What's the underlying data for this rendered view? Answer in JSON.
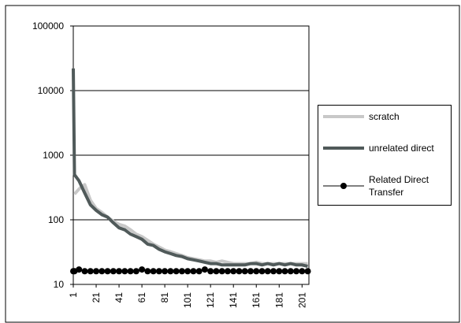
{
  "chart_data": {
    "type": "line",
    "x": [
      1,
      2,
      6,
      11,
      16,
      21,
      26,
      31,
      36,
      41,
      46,
      51,
      56,
      61,
      66,
      71,
      76,
      81,
      86,
      91,
      96,
      101,
      106,
      111,
      116,
      121,
      126,
      131,
      136,
      141,
      146,
      151,
      156,
      161,
      166,
      171,
      176,
      181,
      186,
      191,
      196,
      201,
      206
    ],
    "series": [
      {
        "name": "scratch",
        "color": "#c8c8c8",
        "width": 4,
        "marker": false,
        "values": [
          null,
          250,
          300,
          350,
          200,
          150,
          130,
          110,
          95,
          85,
          80,
          70,
          60,
          55,
          48,
          42,
          38,
          34,
          32,
          30,
          28,
          26,
          25,
          24,
          23,
          23,
          22,
          23,
          22,
          21,
          21,
          21,
          21,
          22,
          21,
          21,
          21,
          21,
          21,
          21,
          21,
          21,
          21
        ]
      },
      {
        "name": "unrelated direct",
        "color": "#505a5a",
        "width": 4,
        "marker": false,
        "values": [
          22000,
          500,
          400,
          260,
          170,
          140,
          120,
          110,
          90,
          75,
          70,
          60,
          55,
          50,
          42,
          40,
          35,
          32,
          30,
          28,
          27,
          25,
          24,
          23,
          22,
          21,
          21,
          20,
          20,
          20,
          20,
          20,
          21,
          21,
          20,
          21,
          20,
          21,
          20,
          21,
          20,
          20,
          19
        ]
      },
      {
        "name": "Related Direct Transfer",
        "color": "#000000",
        "width": 1,
        "marker": true,
        "values": [
          16,
          16,
          17,
          16,
          16,
          16,
          16,
          16,
          16,
          16,
          16,
          16,
          16,
          17,
          16,
          16,
          16,
          16,
          16,
          16,
          16,
          16,
          16,
          16,
          17,
          16,
          16,
          16,
          16,
          16,
          16,
          16,
          16,
          16,
          16,
          16,
          16,
          16,
          16,
          16,
          16,
          16,
          16
        ]
      }
    ],
    "xlim": [
      1,
      207
    ],
    "xticks": [
      1,
      21,
      41,
      61,
      81,
      101,
      121,
      141,
      161,
      181,
      201
    ],
    "ylim": [
      10,
      100000
    ],
    "yticks": [
      10,
      100,
      1000,
      10000,
      100000
    ],
    "log_y": true,
    "grid": true,
    "legend": "right"
  }
}
